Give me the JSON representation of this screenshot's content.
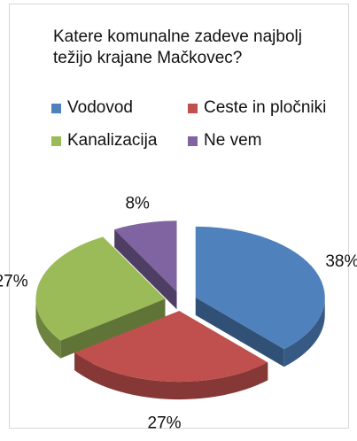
{
  "chart_data": {
    "type": "pie",
    "title": "Katere komunalne zadeve najbolj težijo krajane Mačkovec?",
    "title_lines": [
      "Katere komunalne zadeve najbolj",
      "težijo krajane Mačkovec?"
    ],
    "legend_placement": "top",
    "categories": [
      "Vodovod",
      "Ceste in pločniki",
      "Kanalizacija",
      "Ne vem"
    ],
    "values": [
      38,
      27,
      27,
      8
    ],
    "labels": [
      "38%",
      "27%",
      "27%",
      "8%"
    ],
    "colors": [
      "#4f81bd",
      "#c0504d",
      "#9bbb59",
      "#8064a2"
    ],
    "exploded": true,
    "style": "3d"
  }
}
